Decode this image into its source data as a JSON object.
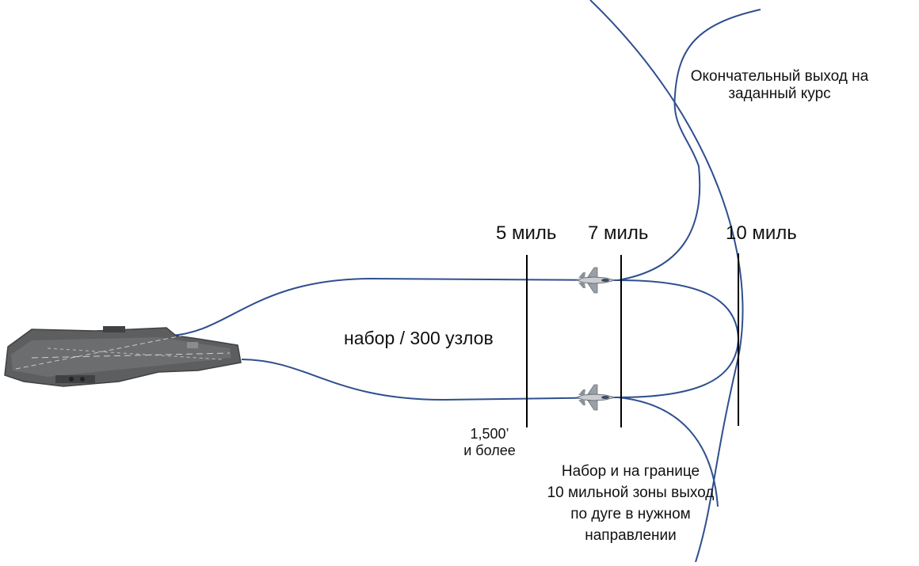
{
  "colors": {
    "path": "#2f4f8f",
    "marker": "#000000",
    "text": "#111111",
    "ship_deck": "#5c5e60",
    "ship_dark": "#3f4143"
  },
  "markers": {
    "five": "5 миль",
    "seven": "7 миль",
    "ten": "10 миль"
  },
  "labels": {
    "climb_speed": "набор / 300 узлов",
    "altitude_line1": "1,500’",
    "altitude_line2": "и более",
    "final_line1": "Окончательный выход на",
    "final_line2": "заданный курс",
    "arc_line1": "Набор и на границе",
    "arc_line2": "10 мильной зоны выход",
    "arc_line3": "по дуге в нужном",
    "arc_line4": "направлении"
  },
  "icons": {
    "ship": "aircraft-carrier-icon",
    "jet": "fighter-jet-icon"
  }
}
